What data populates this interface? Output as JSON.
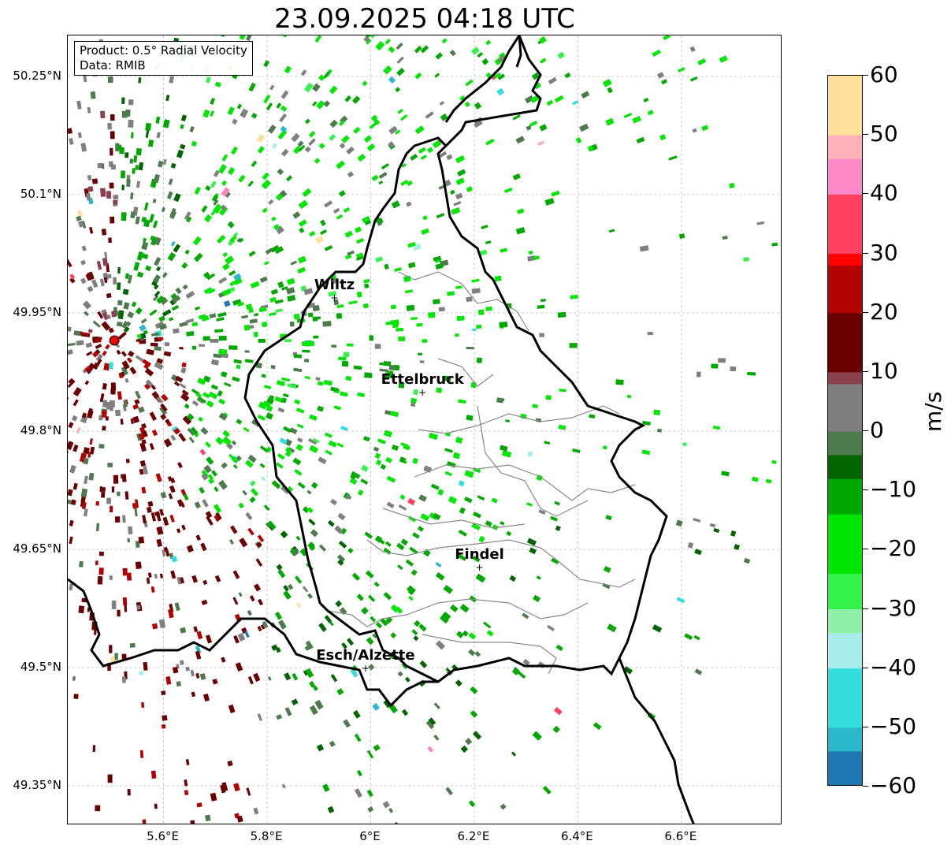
{
  "title": "23.09.2025 04:18 UTC",
  "infobox": {
    "product": "Product: 0.5° Radial Velocity",
    "data": "Data: RMIB"
  },
  "map": {
    "lon_range": [
      5.415,
      6.795
    ],
    "lat_range": [
      49.3,
      50.302
    ],
    "lat_ticks": [
      "50.25°N",
      "50.1°N",
      "49.95°N",
      "49.8°N",
      "49.65°N",
      "49.5°N",
      "49.35°N"
    ],
    "lat_values": [
      50.25,
      50.1,
      49.95,
      49.8,
      49.65,
      49.5,
      49.35
    ],
    "lon_ticks": [
      "5.6°E",
      "5.8°E",
      "6°E",
      "6.2°E",
      "6.4°E",
      "6.6°E"
    ],
    "lon_values": [
      5.6,
      5.8,
      6.0,
      6.2,
      6.4,
      6.6
    ],
    "radar_site": {
      "lon": 5.505,
      "lat": 49.915,
      "color": "#e60000"
    },
    "cities": [
      {
        "name": "Wiltz",
        "lon": 5.93,
        "lat": 49.97
      },
      {
        "name": "Ettelbruck",
        "lon": 6.1,
        "lat": 49.85
      },
      {
        "name": "Findel",
        "lon": 6.21,
        "lat": 49.628
      },
      {
        "name": "Esch/Alzette",
        "lon": 5.99,
        "lat": 49.5
      }
    ]
  },
  "colorbar": {
    "unit": "m/s",
    "ticks": [
      "60",
      "50",
      "40",
      "30",
      "20",
      "10",
      "0",
      "−10",
      "−20",
      "−30",
      "−40",
      "−50",
      "−60"
    ],
    "tick_values": [
      60,
      50,
      40,
      30,
      20,
      10,
      0,
      -10,
      -20,
      -30,
      -40,
      -50,
      -60
    ],
    "min": -60,
    "max": 60,
    "stops": [
      {
        "v": -60,
        "color": "#1f77b4"
      },
      {
        "v": -55,
        "color": "#2ab8cc"
      },
      {
        "v": -50,
        "color": "#33dddd"
      },
      {
        "v": -40,
        "color": "#a8ecec"
      },
      {
        "v": -35,
        "color": "#8ef0a8"
      },
      {
        "v": -30,
        "color": "#33f24a"
      },
      {
        "v": -25,
        "color": "#00e600"
      },
      {
        "v": -15,
        "color": "#00a800"
      },
      {
        "v": -8,
        "color": "#006400"
      },
      {
        "v": -5,
        "color": "#4e7a4e"
      },
      {
        "v": 0,
        "color": "#7f7f7f"
      },
      {
        "v": 8,
        "color": "#8b4050"
      },
      {
        "v": 10,
        "color": "#6b0000"
      },
      {
        "v": 20,
        "color": "#b30000"
      },
      {
        "v": 28,
        "color": "#ff0000"
      },
      {
        "v": 30,
        "color": "#ff4060"
      },
      {
        "v": 40,
        "color": "#ff88c8"
      },
      {
        "v": 45,
        "color": "#ffb0b8"
      },
      {
        "v": 50,
        "color": "#ffe09a"
      },
      {
        "v": 60,
        "color": "#ff9650"
      }
    ]
  }
}
